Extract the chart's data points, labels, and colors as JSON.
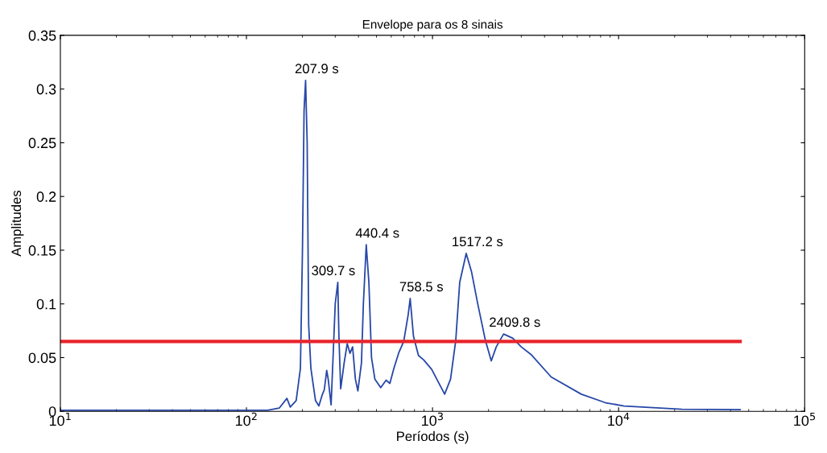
{
  "chart_data": {
    "type": "line",
    "title": "Envelope para os 8 sinais",
    "xlabel": "Períodos (s)",
    "ylabel": "Amplitudes",
    "log": "x",
    "xlim": [
      10,
      100000
    ],
    "xticks": [
      {
        "value": 10,
        "label": "10$^{1}$"
      },
      {
        "value": 100,
        "label": "10$^{2}$"
      },
      {
        "value": 1000,
        "label": "10$^{3}$"
      },
      {
        "value": 10000,
        "label": "10$^{4}$"
      },
      {
        "value": 100000,
        "label": "10$^{5}$"
      }
    ],
    "ylim": [
      0,
      0.35
    ],
    "yticks": [
      0,
      0.05,
      0.1,
      0.15,
      0.2,
      0.25,
      0.3,
      0.35
    ],
    "grid": false,
    "legend": false,
    "series": [
      {
        "color": "#2747a8",
        "x": [
          10,
          100,
          130,
          150,
          165,
          172,
          185,
          195,
          200,
          204,
          207.9,
          212,
          216,
          222,
          235,
          245,
          255,
          262,
          270,
          275,
          285,
          292,
          300,
          309.7,
          314,
          321,
          335,
          348,
          360,
          372,
          385,
          397,
          415,
          425,
          440.4,
          455,
          470,
          490,
          527,
          563,
          590,
          620,
          660,
          700,
          740,
          758.5,
          790,
          840,
          895,
          990,
          1162,
          1250,
          1333,
          1400,
          1517.2,
          1620,
          1750,
          1924,
          2069,
          2200,
          2409.8,
          2700,
          3000,
          3380,
          4340,
          6300,
          8500,
          10700,
          21900,
          45000
        ],
        "values": [
          0.001,
          0.001,
          0.001,
          0.003,
          0.012,
          0.004,
          0.01,
          0.04,
          0.15,
          0.28,
          0.308,
          0.25,
          0.08,
          0.04,
          0.01,
          0.005,
          0.015,
          0.02,
          0.038,
          0.03,
          0.006,
          0.05,
          0.1,
          0.12,
          0.07,
          0.021,
          0.045,
          0.063,
          0.054,
          0.06,
          0.03,
          0.019,
          0.045,
          0.1,
          0.155,
          0.12,
          0.05,
          0.03,
          0.022,
          0.029,
          0.026,
          0.04,
          0.055,
          0.065,
          0.09,
          0.105,
          0.07,
          0.052,
          0.048,
          0.039,
          0.016,
          0.03,
          0.066,
          0.12,
          0.147,
          0.13,
          0.1,
          0.066,
          0.047,
          0.06,
          0.072,
          0.068,
          0.06,
          0.053,
          0.032,
          0.016,
          0.008,
          0.005,
          0.002,
          0.0015
        ]
      },
      {
        "color": "#e8252b",
        "x": [
          10,
          45000
        ],
        "values": [
          0.065,
          0.065
        ]
      }
    ],
    "annotations": [
      {
        "text": "207.9 s",
        "x": 207.9,
        "y": 0.308
      },
      {
        "text": "309.7 s",
        "x": 309.7,
        "y": 0.12
      },
      {
        "text": "440.4 s",
        "x": 440.4,
        "y": 0.155
      },
      {
        "text": "758.5 s",
        "x": 758.5,
        "y": 0.105
      },
      {
        "text": "1517.2 s",
        "x": 1517.2,
        "y": 0.147
      },
      {
        "text": "2409.8 s",
        "x": 2409.8,
        "y": 0.072
      }
    ]
  }
}
